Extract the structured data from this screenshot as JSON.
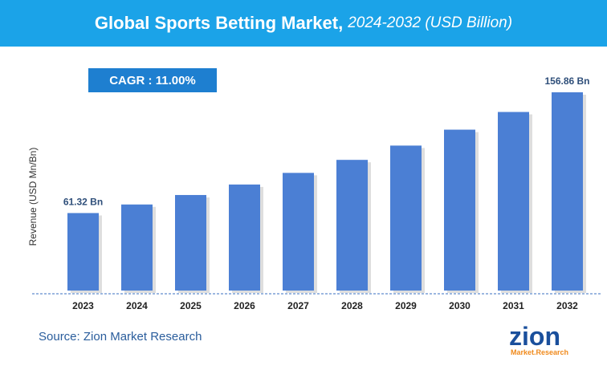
{
  "header": {
    "title": "Global Sports Betting Market,",
    "subtitle": "2024-2032 (USD Billion)"
  },
  "cagr_label": "CAGR : 11.00%",
  "source": "Source: Zion Market Research",
  "logo": {
    "word": "zion",
    "tagline": "Market.Research"
  },
  "colors": {
    "header_bg": "#1ba3e8",
    "cagr_bg": "#1e7fd0",
    "bar": "#4b7fd4",
    "logo_blue": "#1a4f9c",
    "logo_orange": "#f08a1c"
  },
  "chart_data": {
    "type": "bar",
    "title": "Global Sports Betting Market, 2024-2032 (USD Billion)",
    "ylabel": "Revenue (USD Mn/Bn)",
    "xlabel": "",
    "categories": [
      "2023",
      "2024",
      "2025",
      "2026",
      "2027",
      "2028",
      "2029",
      "2030",
      "2031",
      "2032"
    ],
    "values": [
      61.32,
      68.1,
      75.6,
      83.9,
      93.1,
      103.4,
      114.7,
      127.3,
      141.3,
      156.86
    ],
    "data_labels": {
      "0": "61.32 Bn",
      "9": "156.86 Bn"
    },
    "ylim": [
      0,
      160
    ],
    "grid": false
  }
}
